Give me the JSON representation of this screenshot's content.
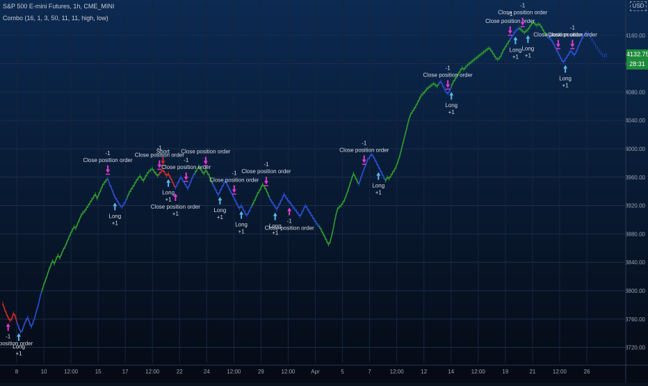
{
  "header": {
    "title": "S&P 500 E-mini Futures, 1h, CME_MINI",
    "indicator": "Combo (16, 1, 3, 50, 11, 11, high, low)"
  },
  "currency_badge": "USD",
  "price_badge": {
    "price": "4132.75",
    "countdown": "28:31"
  },
  "colors": {
    "background_top": "#0c2a52",
    "background_bottom": "#050a14",
    "bull": "#2e9d2e",
    "neutral": "#2a4fd1",
    "bear": "#d12a2a",
    "long_arrow": "#59b8ee",
    "exit_arrow": "#e23bd0",
    "label_text": "#d8dce6",
    "axis_text": "#9aa3b2",
    "badge_green": "#1e8a3a"
  },
  "chart_data": {
    "type": "line",
    "x_labels": [
      "8",
      "10",
      "12:00",
      "15",
      "17",
      "12:00",
      "22",
      "24",
      "12:00",
      "29",
      "12:00",
      "Apr",
      "5",
      "7",
      "12:00",
      "12",
      "14",
      "12:00",
      "19",
      "21",
      "12:00",
      "26"
    ],
    "y_ticks": [
      "4160.00",
      "4120.00",
      "4080.00",
      "4040.00",
      "4000.00",
      "3960.00",
      "3920.00",
      "3880.00",
      "3840.00",
      "3800.00",
      "3760.00",
      "3720.00"
    ],
    "ylim": [
      3698,
      4198
    ],
    "series": [
      {
        "values": [
          3782,
          3774,
          3768,
          3762,
          3758,
          3760,
          3768,
          3764,
          3755,
          3748,
          3742,
          3744,
          3752,
          3758,
          3762,
          3755,
          3749,
          3755,
          3762,
          3772,
          3780,
          3792,
          3800,
          3808,
          3815,
          3822,
          3830,
          3836,
          3842,
          3838,
          3845,
          3850,
          3846,
          3852,
          3858,
          3862,
          3868,
          3874,
          3880,
          3885,
          3890,
          3888,
          3894,
          3900,
          3906,
          3910,
          3912,
          3916,
          3920,
          3924,
          3928,
          3932,
          3936,
          3930,
          3936,
          3942,
          3948,
          3952,
          3955,
          3958,
          3950,
          3945,
          3938,
          3932,
          3928,
          3924,
          3920,
          3918,
          3922,
          3926,
          3932,
          3938,
          3942,
          3946,
          3950,
          3955,
          3958,
          3962,
          3958,
          3955,
          3960,
          3964,
          3968,
          3970,
          3972,
          3968,
          3965,
          3962,
          3965,
          3968,
          3970,
          3966,
          3962,
          3965,
          3960,
          3955,
          3950,
          3945,
          3950,
          3955,
          3960,
          3956,
          3952,
          3948,
          3944,
          3950,
          3956,
          3962,
          3966,
          3970,
          3975,
          3972,
          3968,
          3965,
          3970,
          3966,
          3962,
          3956,
          3950,
          3945,
          3940,
          3935,
          3940,
          3945,
          3950,
          3955,
          3950,
          3945,
          3940,
          3935,
          3930,
          3925,
          3920,
          3916,
          3920,
          3915,
          3910,
          3906,
          3910,
          3915,
          3920,
          3925,
          3930,
          3936,
          3940,
          3945,
          3950,
          3946,
          3942,
          3936,
          3930,
          3926,
          3922,
          3918,
          3915,
          3920,
          3925,
          3930,
          3936,
          3932,
          3928,
          3925,
          3922,
          3918,
          3915,
          3912,
          3908,
          3905,
          3910,
          3915,
          3920,
          3916,
          3912,
          3908,
          3904,
          3900,
          3896,
          3892,
          3890,
          3885,
          3880,
          3875,
          3870,
          3865,
          3870,
          3880,
          3892,
          3905,
          3915,
          3918,
          3920,
          3924,
          3928,
          3935,
          3942,
          3950,
          3958,
          3965,
          3960,
          3955,
          3950,
          3958,
          3965,
          3972,
          3978,
          3985,
          3988,
          3992,
          3990,
          3985,
          3980,
          3975,
          3970,
          3965,
          3960,
          3955,
          3960,
          3958,
          3962,
          3966,
          3970,
          3975,
          3982,
          3990,
          4000,
          4010,
          4020,
          4030,
          4040,
          4048,
          4052,
          4056,
          4060,
          4065,
          4070,
          4075,
          4078,
          4080,
          4084,
          4086,
          4088,
          4090,
          4092,
          4090,
          4088,
          4092,
          4095,
          4090,
          4085,
          4080,
          4078,
          4082,
          4088,
          4094,
          4098,
          4102,
          4106,
          4110,
          4114,
          4112,
          4115,
          4118,
          4120,
          4122,
          4124,
          4126,
          4128,
          4130,
          4132,
          4134,
          4136,
          4138,
          4140,
          4142,
          4140,
          4136,
          4132,
          4128,
          4126,
          4128,
          4132,
          4138,
          4142,
          4146,
          4150,
          4154,
          4158,
          4162,
          4166,
          4168,
          4170,
          4168,
          4166,
          4164,
          4166,
          4168,
          4172,
          4176,
          4178,
          4176,
          4174,
          4176,
          4174,
          4170,
          4165,
          4162,
          4158,
          4156,
          4154,
          4150,
          4145,
          4140,
          4135,
          4130,
          4125,
          4122,
          4126,
          4130,
          4134,
          4138,
          4135,
          4132,
          4136,
          4142,
          4148,
          4154,
          4158,
          4162,
          4164,
          4162,
          4158,
          4154,
          4150,
          4146,
          4142,
          4138,
          4135,
          4132,
          4131,
          4132
        ]
      }
    ],
    "color_segments": [
      {
        "from": 0,
        "to": 8,
        "color": "bear"
      },
      {
        "from": 8,
        "to": 22,
        "color": "neutral"
      },
      {
        "from": 22,
        "to": 59,
        "color": "bull"
      },
      {
        "from": 59,
        "to": 70,
        "color": "neutral"
      },
      {
        "from": 70,
        "to": 88,
        "color": "bull"
      },
      {
        "from": 88,
        "to": 97,
        "color": "bear"
      },
      {
        "from": 97,
        "to": 108,
        "color": "neutral"
      },
      {
        "from": 108,
        "to": 118,
        "color": "bull"
      },
      {
        "from": 118,
        "to": 140,
        "color": "neutral"
      },
      {
        "from": 140,
        "to": 150,
        "color": "bull"
      },
      {
        "from": 150,
        "to": 178,
        "color": "neutral"
      },
      {
        "from": 178,
        "to": 200,
        "color": "bull"
      },
      {
        "from": 200,
        "to": 215,
        "color": "neutral"
      },
      {
        "from": 215,
        "to": 245,
        "color": "bull"
      },
      {
        "from": 245,
        "to": 252,
        "color": "neutral"
      },
      {
        "from": 252,
        "to": 285,
        "color": "bull"
      },
      {
        "from": 285,
        "to": 290,
        "color": "neutral"
      },
      {
        "from": 290,
        "to": 306,
        "color": "bull"
      },
      {
        "from": 306,
        "to": 328,
        "color": "neutral"
      }
    ],
    "annotations": [
      {
        "type": "exit",
        "index": 3,
        "side": "below",
        "lines": [
          "-1",
          "Close position order"
        ]
      },
      {
        "type": "long",
        "index": 9,
        "side": "below",
        "lines": [
          "Long",
          "+1"
        ]
      },
      {
        "type": "exit",
        "index": 59,
        "side": "above",
        "lines": [
          "-1",
          "Close position order"
        ]
      },
      {
        "type": "long",
        "index": 63,
        "side": "below",
        "lines": [
          "Long",
          "+1"
        ]
      },
      {
        "type": "exit",
        "index": 88,
        "side": "above",
        "lines": [
          "-1",
          "Close position order"
        ]
      },
      {
        "type": "short",
        "index": 90,
        "side": "above",
        "lines": [
          "Short"
        ]
      },
      {
        "type": "long",
        "index": 93,
        "side": "below",
        "lines": [
          "Long",
          "+1"
        ]
      },
      {
        "type": "exit",
        "index": 97,
        "side": "below",
        "lines": [
          "Close position order",
          "+1"
        ]
      },
      {
        "type": "exit",
        "index": 103,
        "side": "above",
        "lines": [
          "-1",
          "Close position order"
        ]
      },
      {
        "type": "exit",
        "index": 114,
        "side": "above",
        "lines": [
          "Close position order"
        ]
      },
      {
        "type": "long",
        "index": 122,
        "side": "below",
        "lines": [
          "Long",
          "+1"
        ]
      },
      {
        "type": "exit",
        "index": 130,
        "side": "above",
        "lines": [
          "-1",
          "Close position order"
        ]
      },
      {
        "type": "long",
        "index": 134,
        "side": "below",
        "lines": [
          "Long",
          "+1"
        ]
      },
      {
        "type": "exit",
        "index": 148,
        "side": "above",
        "lines": [
          "-1",
          "Close position order"
        ]
      },
      {
        "type": "long",
        "index": 153,
        "side": "below",
        "lines": [
          "Long",
          "+1"
        ]
      },
      {
        "type": "exit",
        "index": 161,
        "side": "below",
        "lines": [
          "-1",
          "Close position order"
        ]
      },
      {
        "type": "exit",
        "index": 203,
        "side": "above",
        "lines": [
          "-1",
          "Close position order"
        ]
      },
      {
        "type": "long",
        "index": 211,
        "side": "below",
        "lines": [
          "Long",
          "+1"
        ]
      },
      {
        "type": "exit",
        "index": 250,
        "side": "above",
        "lines": [
          "-1",
          "Close position order"
        ]
      },
      {
        "type": "long",
        "index": 252,
        "side": "below",
        "lines": [
          "Long",
          "+1"
        ]
      },
      {
        "type": "exit",
        "index": 285,
        "side": "above",
        "lines": [
          "-1",
          "Close position order"
        ]
      },
      {
        "type": "long",
        "index": 288,
        "side": "below",
        "lines": [
          "Long",
          "+1"
        ]
      },
      {
        "type": "exit",
        "index": 292,
        "side": "above",
        "lines": [
          "-1",
          "Close position order"
        ]
      },
      {
        "type": "long",
        "index": 295,
        "side": "below",
        "lines": [
          "Long",
          "+1"
        ]
      },
      {
        "type": "exit",
        "index": 312,
        "side": "above",
        "lines": [
          "Close position order"
        ]
      },
      {
        "type": "long",
        "index": 316,
        "side": "below",
        "lines": [
          "Long",
          "+1"
        ]
      },
      {
        "type": "exit",
        "index": 320,
        "side": "above",
        "lines": [
          "-1",
          "Close position order"
        ]
      }
    ],
    "grid": true
  }
}
